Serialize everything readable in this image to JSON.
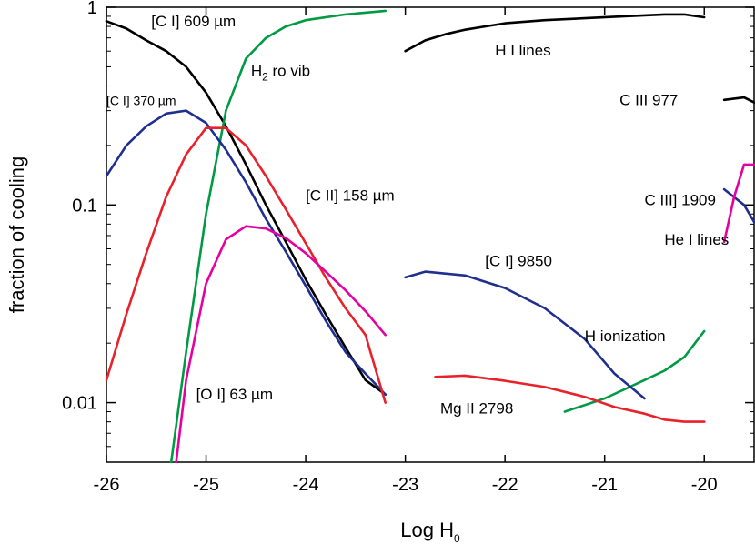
{
  "chart_data": {
    "type": "line",
    "xlabel": "Log H",
    "xlabel_sub": "0",
    "ylabel": "fraction of cooling",
    "xlim": [
      -26,
      -19.5
    ],
    "ylim": [
      0.005,
      1
    ],
    "yscale": "log",
    "xticks": [
      -26,
      -25,
      -24,
      -23,
      -22,
      -21,
      -20
    ],
    "xtick_labels": [
      "-26",
      "-25",
      "-24",
      "-23",
      "-22",
      "-21",
      "-20"
    ],
    "yticks": [
      0.01,
      0.1,
      1
    ],
    "ytick_labels": [
      "0.01",
      "0.1",
      "1"
    ],
    "series": [
      {
        "name": "[C I] 609 µm",
        "color": "#000000",
        "x": [
          -26,
          -25.8,
          -25.6,
          -25.4,
          -25.2,
          -25.0,
          -24.8,
          -24.6,
          -24.4,
          -24.2,
          -24.0,
          -23.8,
          -23.6,
          -23.4,
          -23.2
        ],
        "y": [
          0.85,
          0.78,
          0.68,
          0.6,
          0.5,
          0.37,
          0.25,
          0.16,
          0.1,
          0.065,
          0.042,
          0.028,
          0.019,
          0.013,
          0.011
        ]
      },
      {
        "name": "H I lines",
        "color": "#000000",
        "x": [
          -23.0,
          -22.8,
          -22.6,
          -22.4,
          -22.2,
          -22.0,
          -21.6,
          -21.2,
          -20.8,
          -20.4,
          -20.2,
          -20.0
        ],
        "y": [
          0.6,
          0.68,
          0.73,
          0.77,
          0.8,
          0.83,
          0.86,
          0.88,
          0.9,
          0.92,
          0.92,
          0.89
        ]
      },
      {
        "name": "C III 977",
        "color": "#000000",
        "x": [
          -19.8,
          -19.6,
          -19.5
        ],
        "y": [
          0.34,
          0.35,
          0.33
        ]
      },
      {
        "name": "H2 ro vib",
        "color": "#009a44",
        "x": [
          -25.35,
          -25.2,
          -25.0,
          -24.8,
          -24.6,
          -24.4,
          -24.2,
          -24.0,
          -23.6,
          -23.2
        ],
        "y": [
          0.005,
          0.018,
          0.09,
          0.3,
          0.55,
          0.7,
          0.8,
          0.86,
          0.92,
          0.96
        ]
      },
      {
        "name": "H ionization",
        "color": "#009a44",
        "x": [
          -21.4,
          -21.0,
          -20.6,
          -20.4,
          -20.2,
          -20.0
        ],
        "y": [
          0.009,
          0.0105,
          0.013,
          0.0145,
          0.017,
          0.023
        ]
      },
      {
        "name": "[C I] 370 µm",
        "color": "#1f2f8f",
        "x": [
          -26,
          -25.8,
          -25.6,
          -25.4,
          -25.2,
          -25.0,
          -24.8,
          -24.6,
          -24.4,
          -24.2,
          -24.0,
          -23.8,
          -23.6,
          -23.4,
          -23.2
        ],
        "y": [
          0.14,
          0.2,
          0.25,
          0.29,
          0.3,
          0.26,
          0.19,
          0.13,
          0.085,
          0.058,
          0.039,
          0.026,
          0.018,
          0.014,
          0.011
        ]
      },
      {
        "name": "[C I] 9850",
        "color": "#1f2f8f",
        "x": [
          -23.0,
          -22.8,
          -22.4,
          -22.0,
          -21.6,
          -21.2,
          -20.9,
          -20.6
        ],
        "y": [
          0.043,
          0.046,
          0.044,
          0.038,
          0.03,
          0.021,
          0.014,
          0.0105
        ]
      },
      {
        "name": "C III] 1909",
        "color": "#1f2f8f",
        "x": [
          -19.8,
          -19.6,
          -19.5
        ],
        "y": [
          0.12,
          0.1,
          0.082
        ]
      },
      {
        "name": "[C II] 158 µm",
        "color": "#e8212b",
        "x": [
          -26,
          -25.8,
          -25.6,
          -25.4,
          -25.2,
          -25.0,
          -24.8,
          -24.6,
          -24.4,
          -24.2,
          -24.0,
          -23.8,
          -23.6,
          -23.4,
          -23.2
        ],
        "y": [
          0.013,
          0.028,
          0.057,
          0.11,
          0.18,
          0.245,
          0.245,
          0.2,
          0.14,
          0.095,
          0.064,
          0.043,
          0.03,
          0.022,
          0.01
        ]
      },
      {
        "name": "Mg II 2798",
        "color": "#e8212b",
        "x": [
          -22.7,
          -22.4,
          -22.0,
          -21.6,
          -21.2,
          -20.9,
          -20.6,
          -20.4,
          -20.2,
          -20.0
        ],
        "y": [
          0.0135,
          0.0137,
          0.0129,
          0.012,
          0.0107,
          0.0095,
          0.0088,
          0.0082,
          0.008,
          0.008
        ]
      },
      {
        "name": "[O I] 63 µm",
        "color": "#e600a0",
        "x": [
          -25.3,
          -25.2,
          -25.0,
          -24.8,
          -24.6,
          -24.4,
          -24.2,
          -24.0,
          -23.8,
          -23.6,
          -23.4,
          -23.2
        ],
        "y": [
          0.005,
          0.013,
          0.04,
          0.067,
          0.078,
          0.076,
          0.068,
          0.057,
          0.046,
          0.037,
          0.029,
          0.022
        ]
      },
      {
        "name": "He I lines",
        "color": "#e600a0",
        "x": [
          -19.8,
          -19.7,
          -19.6,
          -19.5
        ],
        "y": [
          0.065,
          0.11,
          0.16,
          0.16
        ]
      }
    ],
    "annotations": [
      {
        "text": "[C I] 609 µm",
        "x": -25.55,
        "y": 0.8
      },
      {
        "text": "H",
        "sub": "2",
        "rest": " ro vib",
        "x": -24.55,
        "y": 0.45
      },
      {
        "text": "[C I] 370 µm",
        "x": -26.0,
        "y": 0.32,
        "small": true
      },
      {
        "text": "[C II] 158 µm",
        "x": -24.0,
        "y": 0.105
      },
      {
        "text": "[O I] 63 µm",
        "x": -25.1,
        "y": 0.0104
      },
      {
        "text": "H I lines",
        "x": -22.1,
        "y": 0.57
      },
      {
        "text": "C III 977",
        "x": -20.85,
        "y": 0.32
      },
      {
        "text": "C III] 1909",
        "x": -20.6,
        "y": 0.1
      },
      {
        "text": "He I lines",
        "x": -20.4,
        "y": 0.063
      },
      {
        "text": "[C I] 9850",
        "x": -22.2,
        "y": 0.049
      },
      {
        "text": "H ionization",
        "x": -21.2,
        "y": 0.0205
      },
      {
        "text": "Mg II 2798",
        "x": -22.65,
        "y": 0.0088
      }
    ]
  }
}
